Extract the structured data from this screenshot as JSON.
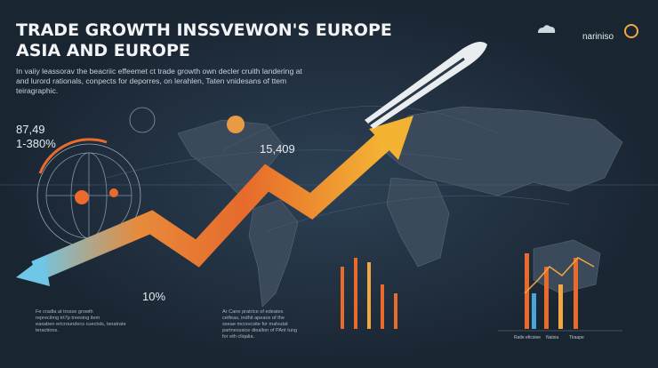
{
  "header": {
    "title_lines": [
      "TRADE GROWTH INSSVEWON'S EUROPE",
      "ASIA AND EUROPE"
    ],
    "subtitle_lines": [
      "In vaiiy leassorav the beacriic effeemet ct trade growth own decler cruith landering at",
      "and lurord rationals, conpects for deporres, on lerahlen, Taten vnidesans of ttem",
      "teiragraphic."
    ],
    "logo": "nariniso"
  },
  "stats": {
    "left_top": "87,49",
    "left_bottom": "1-380%",
    "map": "15,409",
    "arrow": "10%"
  },
  "notes": {
    "left": [
      "Fe cradla at trosse growth",
      "reprecilmg trt7p treesing ilem",
      "eaxaben ericroundecs cuectsls, tsnatrate",
      "teractions."
    ],
    "middle": [
      "Ar Cane pratrice of edeates",
      "cetfeas, indhit apeace of the",
      "sseae mcrsvcsite for malvutat",
      "partnesssice dieallon of PAnt tung",
      "for eth cliqalia."
    ]
  },
  "chart_labels": [
    "Ratle eficsiee",
    "Natsia",
    "Tiraape"
  ]
}
